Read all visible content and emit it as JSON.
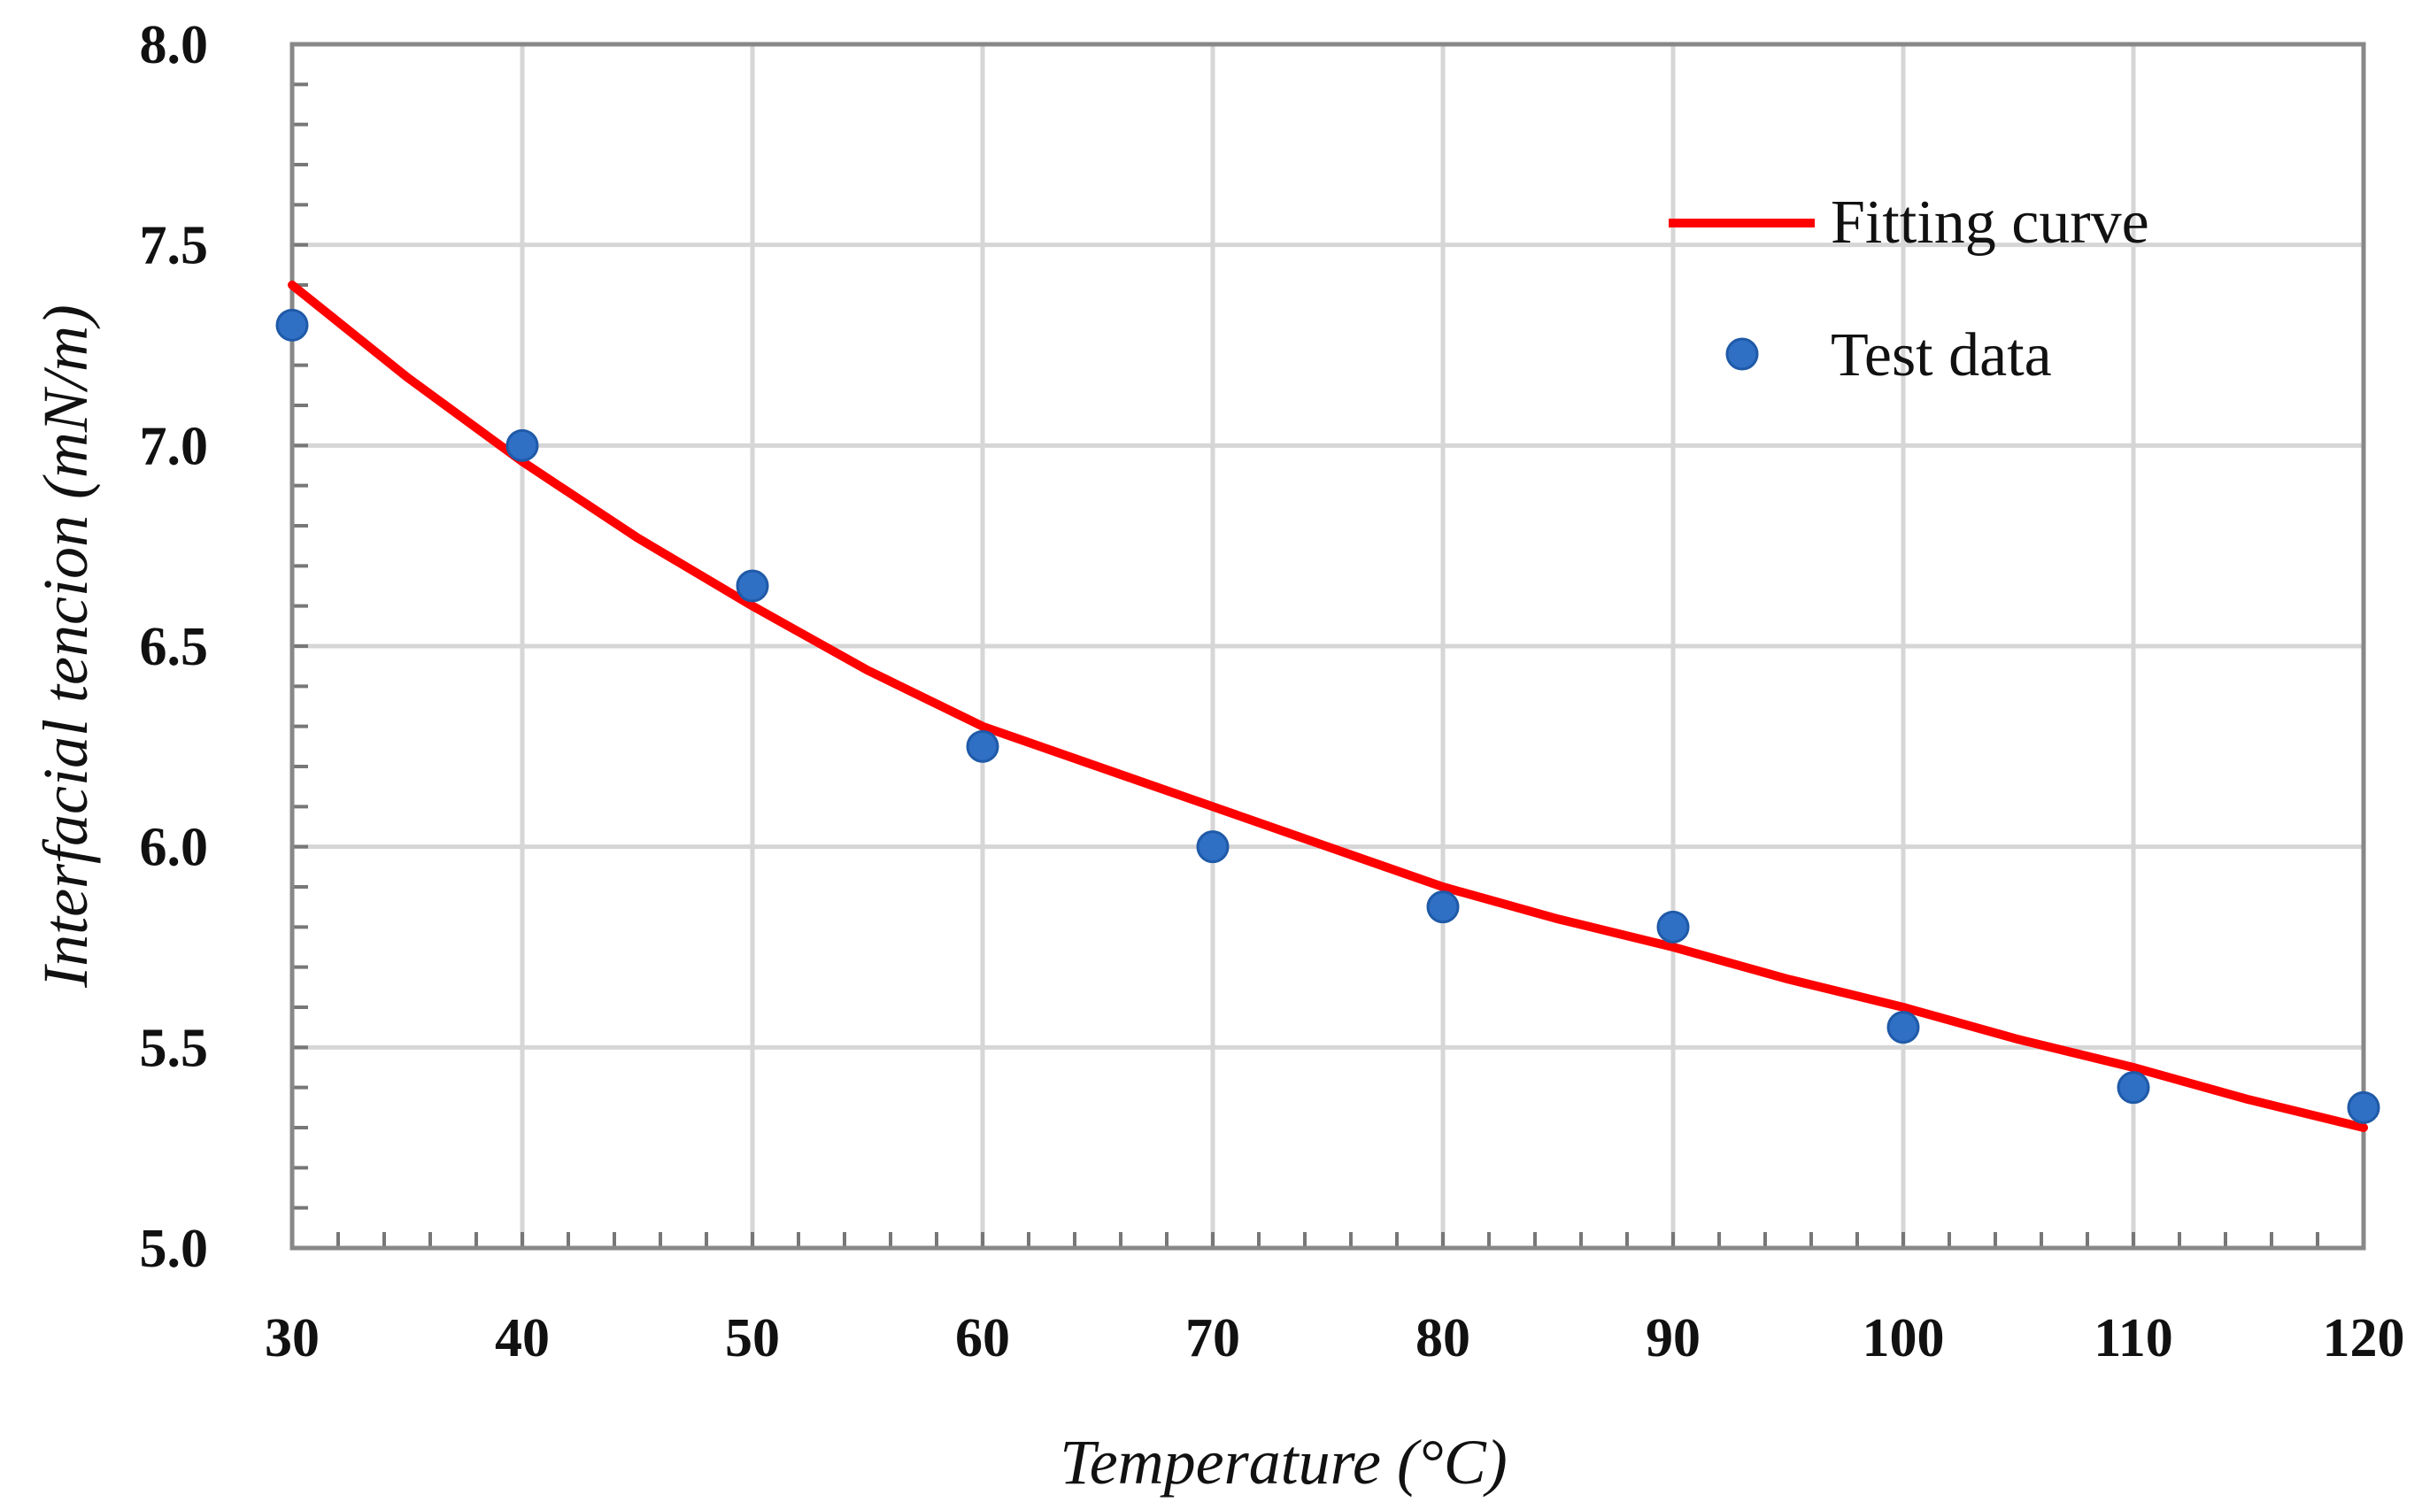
{
  "chart_data": {
    "type": "line",
    "title": "",
    "xlabel": "Temperature (°C)",
    "ylabel": "Interfacial tencion (mN/m)",
    "xlim": [
      30,
      120
    ],
    "ylim": [
      5.0,
      8.0
    ],
    "xticks": [
      30,
      40,
      50,
      60,
      70,
      80,
      90,
      100,
      110,
      120
    ],
    "yticks": [
      5.0,
      5.5,
      6.0,
      6.5,
      7.0,
      7.5,
      8.0
    ],
    "xtick_labels": [
      "30",
      "40",
      "50",
      "60",
      "70",
      "80",
      "90",
      "100",
      "110",
      "120"
    ],
    "ytick_labels": [
      "5.0",
      "5.5",
      "6.0",
      "6.5",
      "7.0",
      "7.5",
      "8.0"
    ],
    "grid": true,
    "legend_position": "top-right",
    "series": [
      {
        "name": "Fitting curve",
        "kind": "line",
        "color": "#ff0000",
        "x": [
          30,
          35,
          40,
          45,
          50,
          55,
          60,
          65,
          70,
          75,
          80,
          85,
          90,
          95,
          100,
          105,
          110,
          115,
          120
        ],
        "y": [
          7.4,
          7.17,
          6.96,
          6.77,
          6.6,
          6.44,
          6.3,
          6.2,
          6.1,
          6.0,
          5.9,
          5.82,
          5.75,
          5.67,
          5.6,
          5.52,
          5.45,
          5.37,
          5.3
        ]
      },
      {
        "name": "Test data",
        "kind": "scatter",
        "color": "#2f6fc4",
        "x": [
          30,
          40,
          50,
          60,
          70,
          80,
          90,
          100,
          110,
          120
        ],
        "y": [
          7.3,
          7.0,
          6.65,
          6.25,
          6.0,
          5.85,
          5.8,
          5.55,
          5.4,
          5.35
        ]
      }
    ]
  }
}
